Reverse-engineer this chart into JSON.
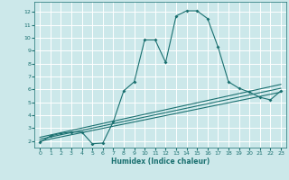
{
  "title": "",
  "xlabel": "Humidex (Indice chaleur)",
  "xlim": [
    -0.5,
    23.5
  ],
  "ylim": [
    1.5,
    12.8
  ],
  "xticks": [
    0,
    1,
    2,
    3,
    4,
    5,
    6,
    7,
    8,
    9,
    10,
    11,
    12,
    13,
    14,
    15,
    16,
    17,
    18,
    19,
    20,
    21,
    22,
    23
  ],
  "yticks": [
    2,
    3,
    4,
    5,
    6,
    7,
    8,
    9,
    10,
    11,
    12
  ],
  "bg_color": "#cce8ea",
  "line_color": "#1a7070",
  "grid_color": "#ffffff",
  "curves": [
    {
      "x": [
        0,
        1,
        2,
        3,
        4,
        5,
        6,
        7,
        8,
        9,
        10,
        11,
        12,
        13,
        14,
        15,
        16,
        17,
        18,
        19,
        20,
        21,
        22,
        23
      ],
      "y": [
        1.9,
        2.4,
        2.6,
        2.7,
        2.7,
        1.8,
        1.85,
        3.5,
        5.9,
        6.6,
        9.85,
        9.85,
        8.1,
        11.7,
        12.1,
        12.1,
        11.5,
        9.3,
        6.6,
        6.1,
        5.8,
        5.4,
        5.2,
        5.9
      ],
      "marker": "D",
      "markersize": 2.0
    },
    {
      "x": [
        0,
        23
      ],
      "y": [
        2.0,
        5.8
      ],
      "marker": null
    },
    {
      "x": [
        0,
        23
      ],
      "y": [
        2.15,
        6.1
      ],
      "marker": null
    },
    {
      "x": [
        0,
        23
      ],
      "y": [
        2.3,
        6.4
      ],
      "marker": null
    }
  ]
}
